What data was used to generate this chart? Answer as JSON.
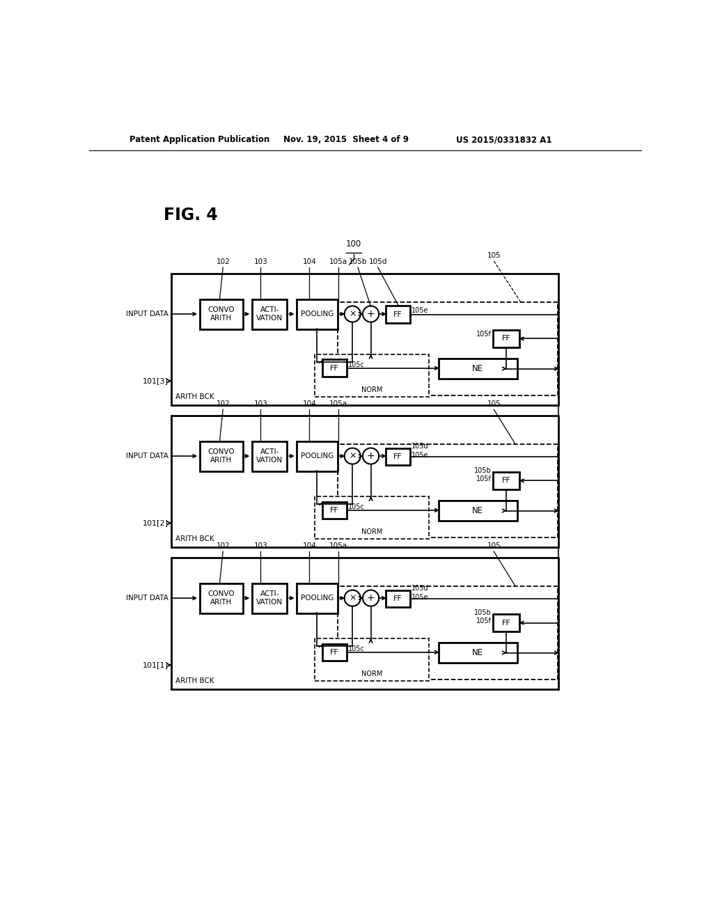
{
  "bg_color": "#ffffff",
  "header_left": "Patent Application Publication",
  "header_mid": "Nov. 19, 2015  Sheet 4 of 9",
  "header_right": "US 2015/0331832 A1",
  "fig_label": "FIG. 4",
  "rows": [
    {
      "label": "101[3]",
      "arith_bck": "ARITH BCK"
    },
    {
      "label": "101[2]",
      "arith_bck": "ARITH BCK"
    },
    {
      "label": "101[1]",
      "arith_bck": "ARITH BCK"
    }
  ]
}
